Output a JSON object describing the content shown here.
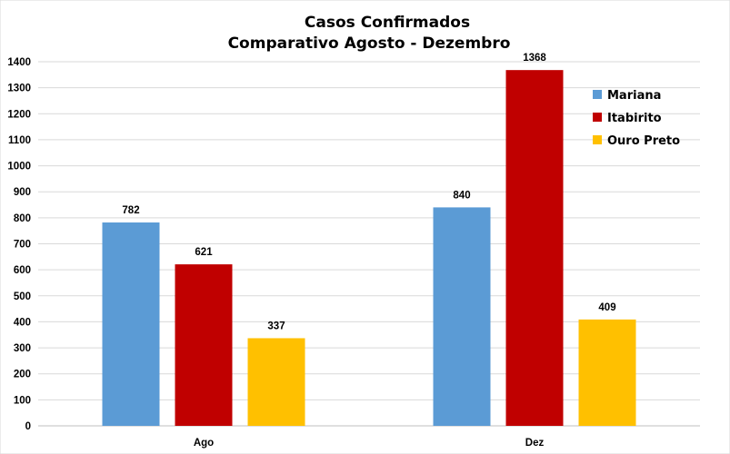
{
  "chart_data": {
    "type": "bar",
    "title": "Casos Confirmados",
    "subtitle": "Comparativo Agosto - Dezembro",
    "categories": [
      "Ago",
      "Dez"
    ],
    "series": [
      {
        "name": "Mariana",
        "values": [
          782,
          840
        ],
        "color": "#5b9bd5"
      },
      {
        "name": "Itabirito",
        "values": [
          621,
          1368
        ],
        "color": "#c00000"
      },
      {
        "name": "Ouro Preto",
        "values": [
          337,
          409
        ],
        "color": "#ffc000"
      }
    ],
    "xlabel": "",
    "ylabel": "",
    "ylim": [
      0,
      1400
    ],
    "yticks": [
      0,
      100,
      200,
      300,
      400,
      500,
      600,
      700,
      800,
      900,
      1000,
      1100,
      1200,
      1300,
      1400
    ],
    "grid": true,
    "legend_position": "top-right",
    "data_labels": true
  }
}
